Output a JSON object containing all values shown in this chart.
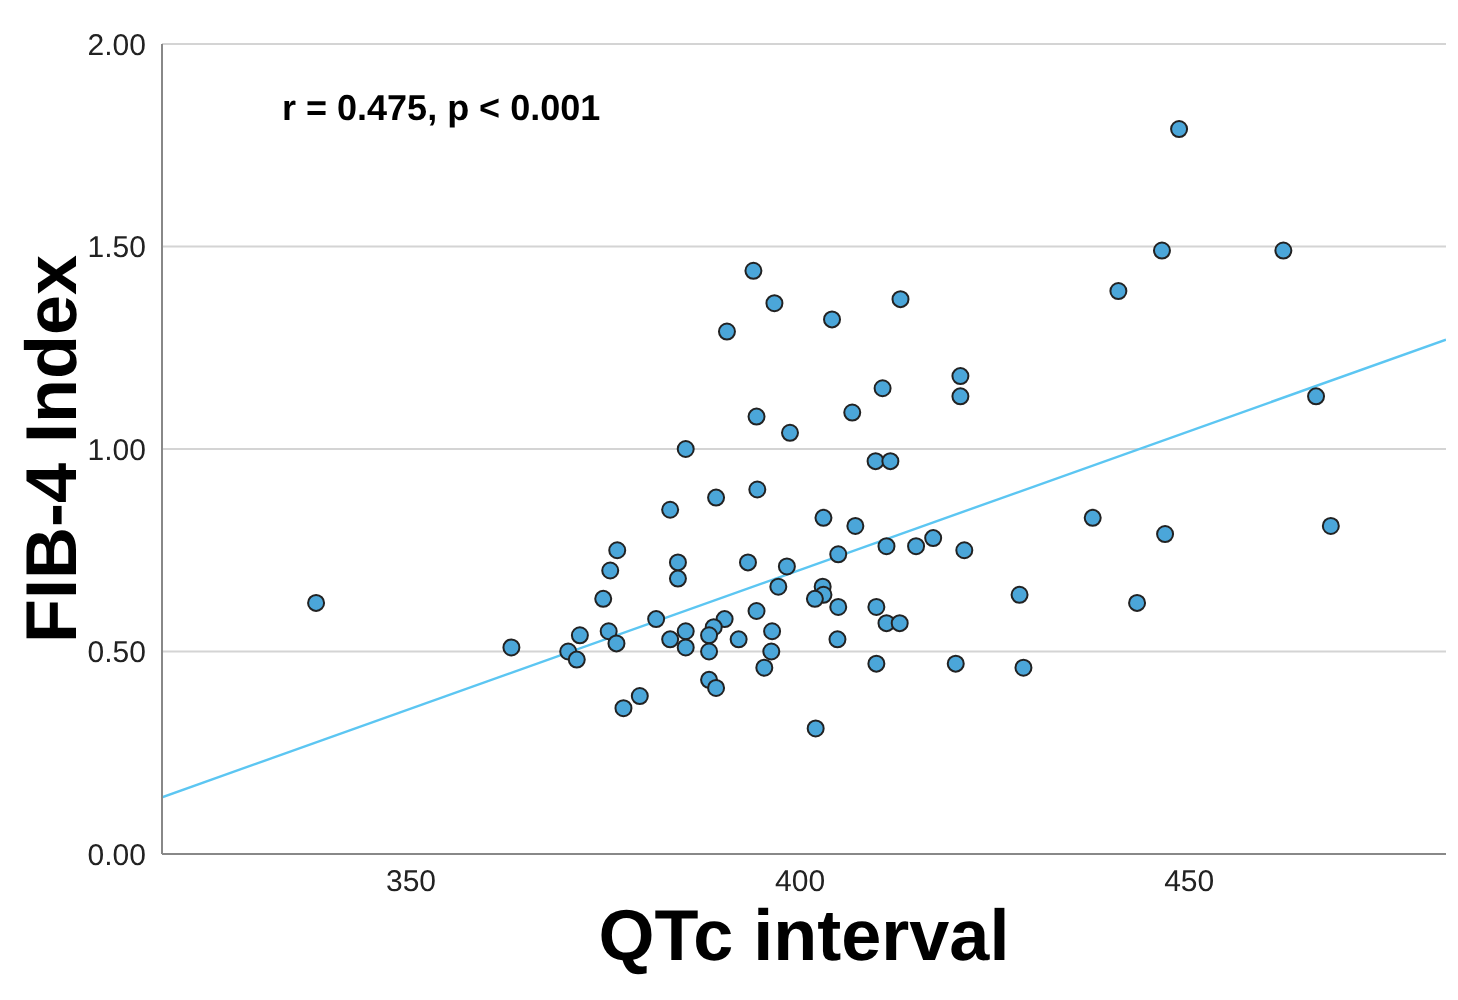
{
  "chart_data": {
    "type": "scatter",
    "xlabel": "QTc interval",
    "ylabel": "FIB-4 Index",
    "annotations": [
      "r = 0.475, p < 0.001"
    ],
    "xlim": [
      318,
      483
    ],
    "ylim": [
      0,
      2
    ],
    "xticks": [
      350,
      400,
      450
    ],
    "yticks": [
      {
        "value": 0,
        "label": "0.00"
      },
      {
        "value": 0.5,
        "label": "0.50"
      },
      {
        "value": 1,
        "label": "1.00"
      },
      {
        "value": 1.5,
        "label": "1.50"
      },
      {
        "value": 2,
        "label": "2.00"
      }
    ],
    "grid": "y",
    "series": [
      {
        "marker": "circle",
        "color": "#4ba6d9",
        "x": [
          337.8,
          362.9,
          370.2,
          371.3,
          371.7,
          374.7,
          375.4,
          376.4,
          375.6,
          376.5,
          377.3,
          379.4,
          381.5,
          383.3,
          383.3,
          394.0,
          396.7,
          390.6,
          404.1,
          412.9,
          410.6,
          420.6,
          420.6,
          394.4,
          406.7,
          398.7,
          385.3,
          409.7,
          411.6,
          389.2,
          394.5,
          403.0,
          407.1,
          417.1,
          411.1,
          414.9,
          421.1,
          384.3,
          384.3,
          393.3,
          398.3,
          404.9,
          428.2,
          397.2,
          402.9,
          403.0,
          401.9,
          404.9,
          394.4,
          409.8,
          411.1,
          412.8,
          390.3,
          388.9,
          385.3,
          388.3,
          392.1,
          396.4,
          385.3,
          388.3,
          396.3,
          395.4,
          388.3,
          389.2,
          404.8,
          409.8,
          420.0,
          428.7,
          402.0,
          448.7,
          446.5,
          462.1,
          440.9,
          466.3,
          437.6,
          446.9,
          468.2,
          443.3
        ],
        "values": [
          0.62,
          0.51,
          0.5,
          0.48,
          0.54,
          0.63,
          0.55,
          0.52,
          0.7,
          0.75,
          0.36,
          0.39,
          0.58,
          0.85,
          0.53,
          1.44,
          1.36,
          1.29,
          1.32,
          1.37,
          1.15,
          1.18,
          1.13,
          1.08,
          1.09,
          1.04,
          1.0,
          0.97,
          0.97,
          0.88,
          0.9,
          0.83,
          0.81,
          0.78,
          0.76,
          0.76,
          0.75,
          0.72,
          0.68,
          0.72,
          0.71,
          0.74,
          0.64,
          0.66,
          0.66,
          0.64,
          0.63,
          0.61,
          0.6,
          0.61,
          0.57,
          0.57,
          0.58,
          0.56,
          0.55,
          0.54,
          0.53,
          0.55,
          0.51,
          0.5,
          0.5,
          0.46,
          0.43,
          0.41,
          0.53,
          0.47,
          0.47,
          0.46,
          0.31,
          1.79,
          1.49,
          1.49,
          1.39,
          1.13,
          0.83,
          0.79,
          0.81,
          0.62
        ]
      },
      {
        "type": "line",
        "color": "#5cc6f2",
        "x": [
          318,
          483
        ],
        "values": [
          0.14,
          1.27
        ]
      }
    ]
  }
}
